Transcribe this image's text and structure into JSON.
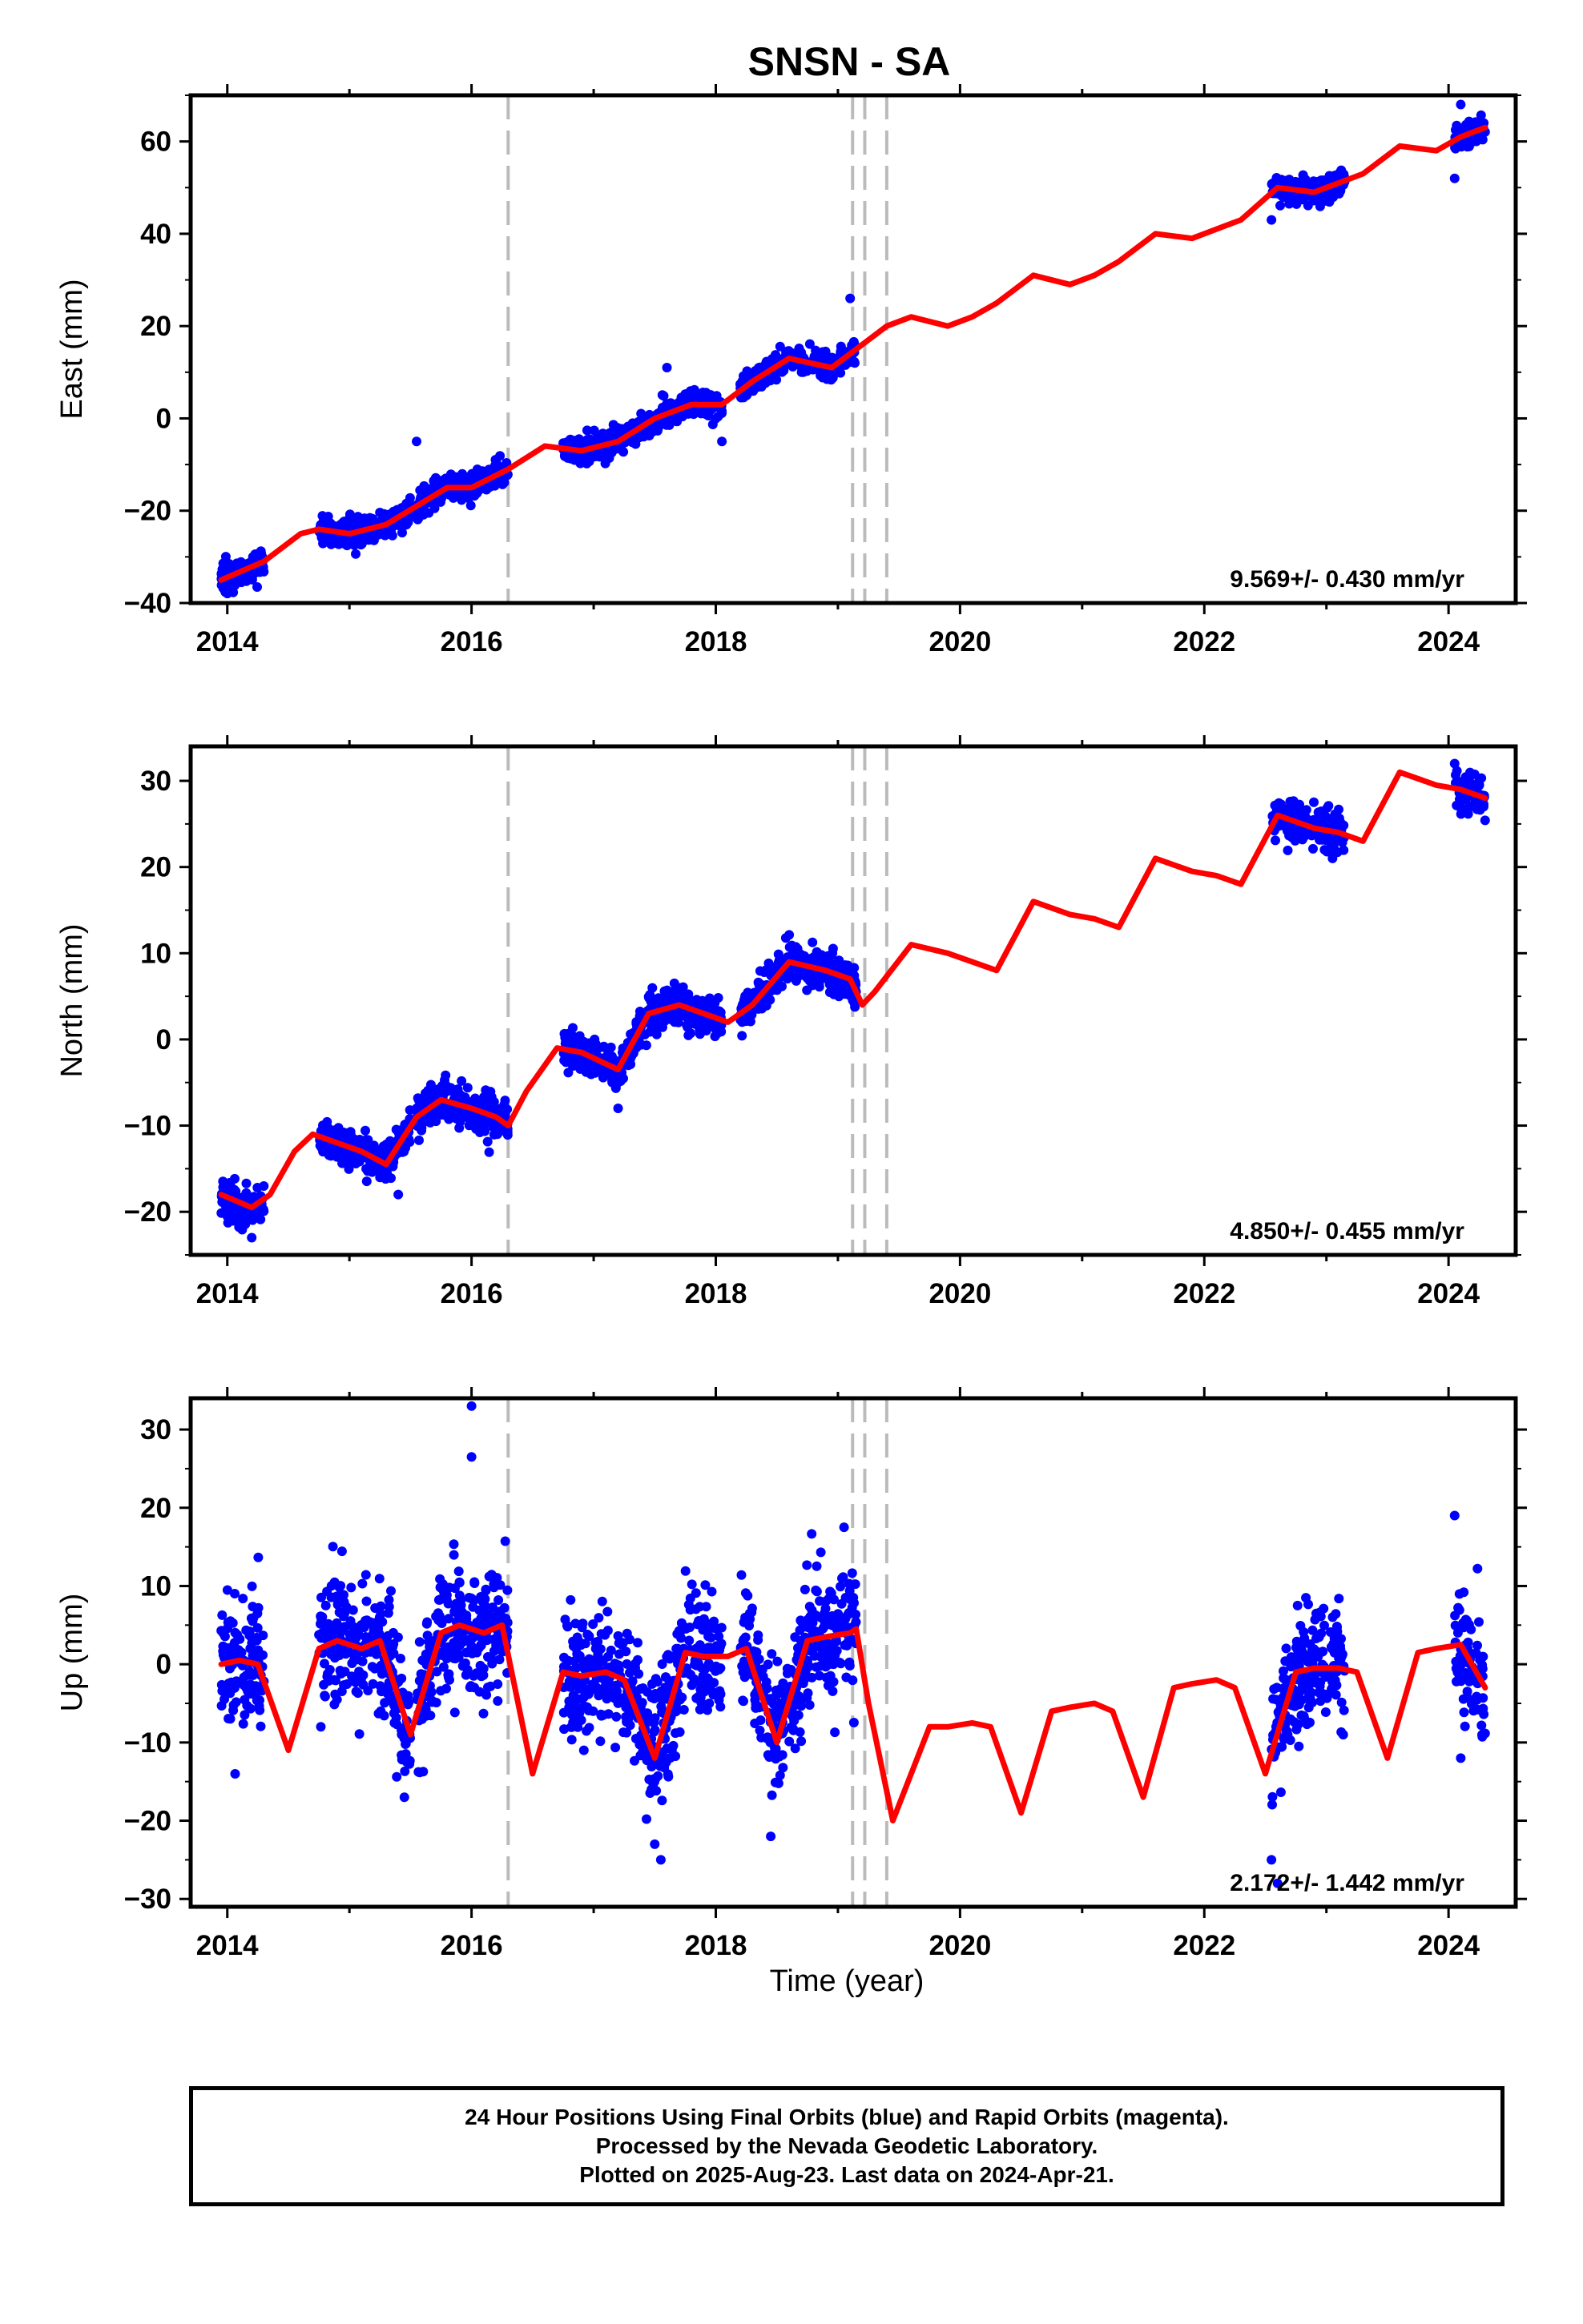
{
  "title": "SNSN - SA",
  "xlabel": "Time (year)",
  "x_ticks": [
    "2014",
    "2016",
    "2018",
    "2020",
    "2022",
    "2024"
  ],
  "colors": {
    "points": "#0000ff",
    "fit": "#ff0000",
    "breaks": "#bbbbbb",
    "frame": "#000000"
  },
  "caption": [
    "24 Hour Positions Using Final Orbits (blue) and Rapid Orbits (magenta).",
    "Processed by the Nevada Geodetic Laboratory.",
    "Plotted on 2025-Aug-23. Last data on 2024-Apr-21."
  ],
  "chart_data": [
    {
      "type": "scatter",
      "name": "east",
      "ylabel": "East (mm)",
      "velocity_label": "9.569+/- 0.430 mm/yr",
      "xlim": [
        2013.7,
        2024.55
      ],
      "ylim": [
        -40,
        70
      ],
      "yticks": [
        -40,
        -20,
        0,
        20,
        40,
        60
      ],
      "breaks": [
        2016.3,
        2019.12,
        2019.22,
        2019.4
      ],
      "data_segments": [
        [
          2013.95,
          2014.3
        ],
        [
          2014.75,
          2015.5
        ],
        [
          2015.55,
          2016.3
        ],
        [
          2016.75,
          2017.4
        ],
        [
          2017.4,
          2018.05
        ],
        [
          2018.2,
          2019.15
        ],
        [
          2022.55,
          2023.15
        ],
        [
          2024.05,
          2024.3
        ]
      ],
      "fit": {
        "x": [
          2013.95,
          2014.3,
          2014.6,
          2014.75,
          2015.0,
          2015.3,
          2015.55,
          2015.8,
          2016.0,
          2016.3,
          2016.6,
          2016.9,
          2017.2,
          2017.5,
          2017.8,
          2018.05,
          2018.3,
          2018.6,
          2018.95,
          2019.15,
          2019.4,
          2019.6,
          2019.9,
          2020.1,
          2020.3,
          2020.6,
          2020.9,
          2021.1,
          2021.3,
          2021.6,
          2021.9,
          2022.1,
          2022.3,
          2022.6,
          2022.9,
          2023.1,
          2023.3,
          2023.6,
          2023.9,
          2024.1,
          2024.3
        ],
        "y": [
          -35,
          -31,
          -25,
          -24,
          -25,
          -23,
          -19,
          -15,
          -15,
          -11,
          -6,
          -7,
          -5,
          0,
          3,
          3,
          8,
          13,
          11,
          15,
          20,
          22,
          20,
          22,
          25,
          31,
          29,
          31,
          34,
          40,
          39,
          41,
          43,
          50,
          49,
          51,
          53,
          59,
          58,
          61,
          63
        ]
      },
      "points": {
        "n": 1700,
        "scatter_sd": 1.4,
        "outliers": [
          [
            2015.55,
            -5
          ],
          [
            2017.6,
            11
          ],
          [
            2018.05,
            -5
          ],
          [
            2019.1,
            26
          ],
          [
            2024.1,
            68
          ],
          [
            2024.05,
            52
          ],
          [
            2022.55,
            43
          ]
        ]
      }
    },
    {
      "type": "scatter",
      "name": "north",
      "ylabel": "North (mm)",
      "velocity_label": "4.850+/- 0.455 mm/yr",
      "xlim": [
        2013.7,
        2024.55
      ],
      "ylim": [
        -25,
        34
      ],
      "yticks": [
        -20,
        -10,
        0,
        10,
        20,
        30
      ],
      "breaks": [
        2016.3,
        2019.12,
        2019.22,
        2019.4
      ],
      "data_segments": [
        [
          2013.95,
          2014.3
        ],
        [
          2014.75,
          2015.5
        ],
        [
          2015.55,
          2016.3
        ],
        [
          2016.75,
          2017.4
        ],
        [
          2017.4,
          2018.05
        ],
        [
          2018.2,
          2019.15
        ],
        [
          2022.55,
          2023.15
        ],
        [
          2024.05,
          2024.3
        ]
      ],
      "fit": {
        "x": [
          2013.95,
          2014.2,
          2014.35,
          2014.55,
          2014.7,
          2014.9,
          2015.1,
          2015.3,
          2015.55,
          2015.75,
          2016.0,
          2016.2,
          2016.3,
          2016.45,
          2016.7,
          2016.9,
          2017.2,
          2017.45,
          2017.7,
          2017.9,
          2018.1,
          2018.3,
          2018.6,
          2018.9,
          2019.1,
          2019.2,
          2019.3,
          2019.6,
          2019.9,
          2020.1,
          2020.3,
          2020.6,
          2020.9,
          2021.1,
          2021.3,
          2021.6,
          2021.9,
          2022.1,
          2022.3,
          2022.6,
          2022.9,
          2023.1,
          2023.3,
          2023.6,
          2023.9,
          2024.1,
          2024.3
        ],
        "y": [
          -18,
          -19.5,
          -18,
          -13,
          -11,
          -12,
          -13,
          -14.5,
          -9,
          -7,
          -8,
          -9,
          -10,
          -6,
          -1,
          -1.5,
          -3.5,
          3,
          4,
          3,
          2,
          4,
          9,
          8,
          7,
          4,
          5.5,
          11,
          10,
          9,
          8,
          16,
          14.5,
          14,
          13,
          21,
          19.5,
          19,
          18,
          26,
          24.5,
          24,
          23,
          31,
          29.5,
          29,
          28
        ]
      },
      "points": {
        "n": 1700,
        "scatter_sd": 1.1,
        "outliers": [
          [
            2014.2,
            -23
          ],
          [
            2015.4,
            -18
          ],
          [
            2017.2,
            -8
          ],
          [
            2024.05,
            32
          ],
          [
            2023.05,
            21
          ]
        ]
      }
    },
    {
      "type": "scatter",
      "name": "up",
      "ylabel": "Up (mm)",
      "velocity_label": "2.172+/- 1.442 mm/yr",
      "xlim": [
        2013.7,
        2024.55
      ],
      "ylim": [
        -31,
        34
      ],
      "yticks": [
        -30,
        -20,
        -10,
        0,
        10,
        20,
        30
      ],
      "breaks": [
        2016.3,
        2019.12,
        2019.22,
        2019.4
      ],
      "data_segments": [
        [
          2013.95,
          2014.3
        ],
        [
          2014.75,
          2015.5
        ],
        [
          2015.55,
          2016.3
        ],
        [
          2016.75,
          2017.4
        ],
        [
          2017.4,
          2018.05
        ],
        [
          2018.2,
          2019.15
        ],
        [
          2022.55,
          2023.15
        ],
        [
          2024.05,
          2024.3
        ]
      ],
      "fit": {
        "x": [
          2013.95,
          2014.1,
          2014.25,
          2014.5,
          2014.75,
          2014.9,
          2015.1,
          2015.25,
          2015.5,
          2015.75,
          2015.9,
          2016.1,
          2016.25,
          2016.5,
          2016.75,
          2016.9,
          2017.1,
          2017.25,
          2017.5,
          2017.75,
          2017.9,
          2018.1,
          2018.25,
          2018.5,
          2018.75,
          2018.9,
          2019.1,
          2019.15,
          2019.25,
          2019.45,
          2019.75,
          2019.9,
          2020.1,
          2020.25,
          2020.5,
          2020.75,
          2020.9,
          2021.1,
          2021.25,
          2021.5,
          2021.75,
          2021.9,
          2022.1,
          2022.25,
          2022.5,
          2022.75,
          2022.9,
          2023.1,
          2023.25,
          2023.5,
          2023.75,
          2023.9,
          2024.1,
          2024.3
        ],
        "y": [
          0,
          0.5,
          0,
          -11,
          2,
          3,
          2,
          3,
          -9,
          4,
          5,
          4,
          5,
          -14,
          -1,
          -1.5,
          -1,
          -2,
          -12,
          1.5,
          1,
          1,
          2,
          -10,
          3,
          3.5,
          4,
          4.5,
          -5,
          -20,
          -8,
          -8,
          -7.5,
          -8,
          -19,
          -6,
          -5.5,
          -5,
          -6,
          -17,
          -3,
          -2.5,
          -2,
          -3,
          -14,
          -1,
          -0.5,
          -0.5,
          -1,
          -12,
          1.5,
          2,
          2.5,
          -3
        ]
      },
      "points": {
        "n": 1700,
        "scatter_sd": 4.0,
        "outliers": [
          [
            2016.0,
            33
          ],
          [
            2016.0,
            26.5
          ],
          [
            2015.45,
            -17
          ],
          [
            2017.55,
            -25
          ],
          [
            2017.5,
            -23
          ],
          [
            2018.45,
            -22
          ],
          [
            2022.6,
            -28
          ],
          [
            2022.55,
            -25
          ],
          [
            2024.05,
            19
          ],
          [
            2024.1,
            -12
          ]
        ]
      }
    }
  ]
}
